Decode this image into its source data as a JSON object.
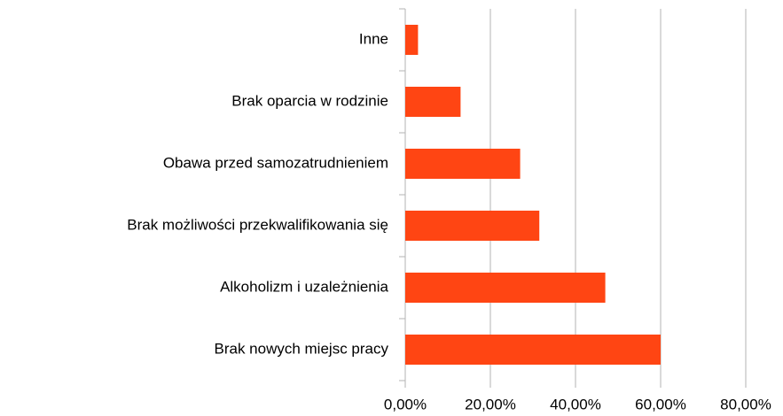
{
  "chart_data": {
    "type": "bar",
    "orientation": "horizontal",
    "categories": [
      "Inne",
      "Brak oparcia w rodzinie",
      "Obawa przed samozatrudnieniem",
      "Brak możliwości przekwalifikowania się",
      "Alkoholizm i uzależnienia",
      "Brak nowych miejsc pracy"
    ],
    "values": [
      3,
      13,
      27,
      31.5,
      47,
      60
    ],
    "color": "#ff4513",
    "xlim": [
      0,
      80
    ],
    "xticks": [
      {
        "value": 0,
        "label": "0,00%"
      },
      {
        "value": 20,
        "label": "20,00%"
      },
      {
        "value": 40,
        "label": "40,00%"
      },
      {
        "value": 60,
        "label": "60,00%"
      },
      {
        "value": 80,
        "label": "80,00%"
      }
    ],
    "grid": true
  }
}
